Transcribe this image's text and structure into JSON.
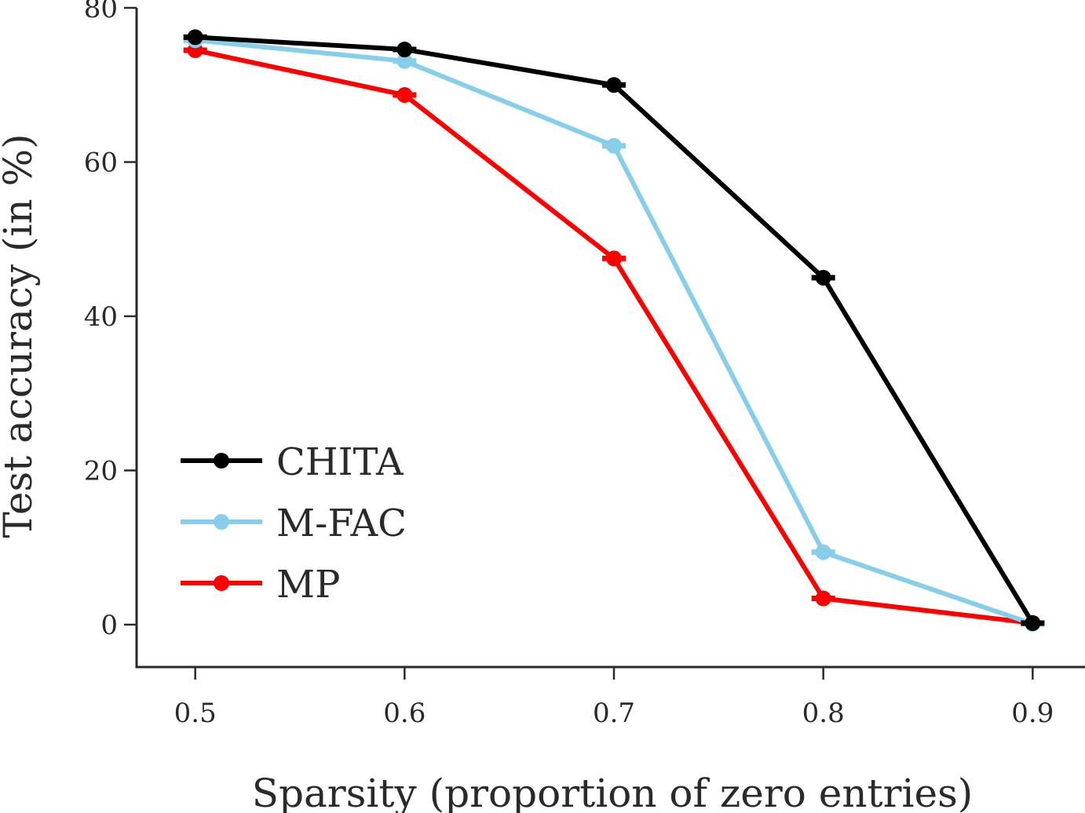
{
  "chart_data": {
    "type": "line",
    "title": "",
    "xlabel": "Sparsity (proportion of zero entries)",
    "ylabel": "Test accuracy (in %)",
    "x": [
      0.5,
      0.6,
      0.7,
      0.8,
      0.9
    ],
    "x_ticks": [
      "0.5",
      "0.6",
      "0.7",
      "0.8",
      "0.9"
    ],
    "y_ticks": [
      "0",
      "20",
      "40",
      "60",
      "80"
    ],
    "ylim": [
      -5.5,
      80
    ],
    "xlim": [
      0.472,
      0.925
    ],
    "grid": false,
    "legend_position": "lower-left",
    "series": [
      {
        "name": "CHITA",
        "color": "#000000",
        "values": [
          76.2,
          74.6,
          70.0,
          45.0,
          0.2
        ]
      },
      {
        "name": "M-FAC",
        "color": "#87ceeb",
        "values": [
          75.8,
          73.1,
          62.1,
          9.4,
          0.1
        ]
      },
      {
        "name": "MP",
        "color": "#ff0000",
        "values": [
          74.5,
          68.7,
          47.5,
          3.4,
          0.2
        ]
      }
    ]
  }
}
